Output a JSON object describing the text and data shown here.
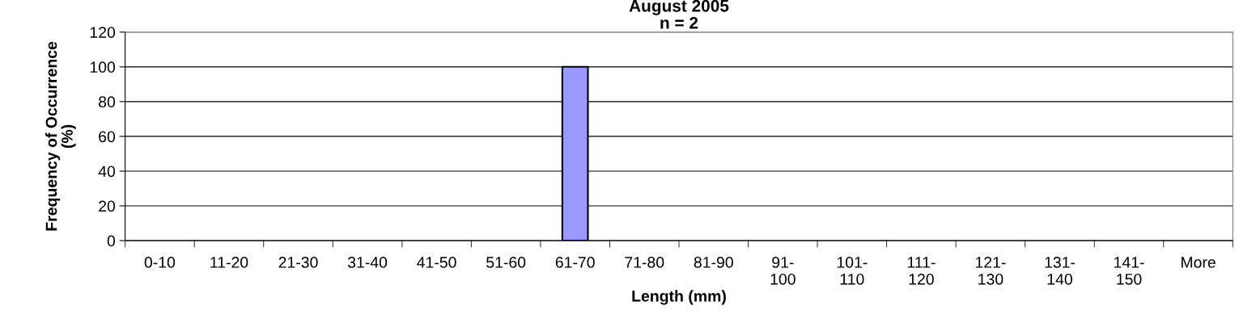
{
  "chart_data": {
    "type": "bar",
    "title": "August 2005",
    "subtitle": "n = 2",
    "xlabel": "Length (mm)",
    "ylabel": "Frequency of Occurrence\n(%)",
    "categories": [
      "0-10",
      "11-20",
      "21-30",
      "31-40",
      "41-50",
      "51-60",
      "61-70",
      "71-80",
      "81-90",
      "91-100",
      "101-110",
      "111-120",
      "121-130",
      "131-140",
      "141-150",
      "More"
    ],
    "values": [
      0,
      0,
      0,
      0,
      0,
      0,
      100,
      0,
      0,
      0,
      0,
      0,
      0,
      0,
      0,
      0
    ],
    "color": "#9999ff",
    "ylim": [
      0,
      120
    ],
    "yticks": [
      0,
      20,
      40,
      60,
      80,
      100,
      120
    ],
    "grid": "y",
    "legend": false
  }
}
